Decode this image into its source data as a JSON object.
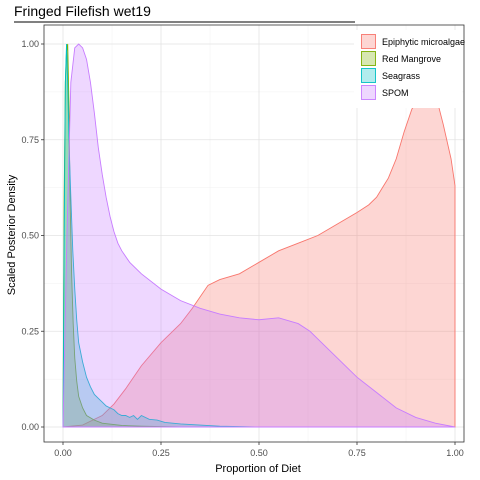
{
  "chart_data": {
    "type": "area",
    "title": "Fringed Filefish wet19",
    "xlabel": "Proportion of Diet",
    "ylabel": "Scaled Posterior Density",
    "xlim": [
      0,
      1
    ],
    "ylim": [
      0,
      1
    ],
    "x_ticks": [
      "0.00",
      "0.25",
      "0.50",
      "0.75",
      "1.00"
    ],
    "y_ticks": [
      "0.00",
      "0.25",
      "0.50",
      "0.75",
      "1.00"
    ],
    "grid": true,
    "legend_position": "top-right",
    "series": [
      {
        "name": "Epiphytic microalgae",
        "fill": "#F8766D",
        "points": [
          [
            0.0,
            0.0
          ],
          [
            0.05,
            0.005
          ],
          [
            0.1,
            0.03
          ],
          [
            0.13,
            0.06
          ],
          [
            0.16,
            0.1
          ],
          [
            0.2,
            0.16
          ],
          [
            0.25,
            0.22
          ],
          [
            0.3,
            0.27
          ],
          [
            0.33,
            0.31
          ],
          [
            0.35,
            0.34
          ],
          [
            0.37,
            0.37
          ],
          [
            0.4,
            0.385
          ],
          [
            0.45,
            0.4
          ],
          [
            0.5,
            0.43
          ],
          [
            0.55,
            0.46
          ],
          [
            0.6,
            0.48
          ],
          [
            0.65,
            0.5
          ],
          [
            0.7,
            0.53
          ],
          [
            0.75,
            0.56
          ],
          [
            0.78,
            0.58
          ],
          [
            0.8,
            0.6
          ],
          [
            0.83,
            0.65
          ],
          [
            0.85,
            0.7
          ],
          [
            0.87,
            0.77
          ],
          [
            0.89,
            0.83
          ],
          [
            0.91,
            0.86
          ],
          [
            0.93,
            0.88
          ],
          [
            0.95,
            0.87
          ],
          [
            0.97,
            0.79
          ],
          [
            0.99,
            0.7
          ],
          [
            1.0,
            0.63
          ]
        ]
      },
      {
        "name": "Red Mangrove",
        "fill": "#7CAE00",
        "points": [
          [
            0.0,
            0.0
          ],
          [
            0.003,
            0.6
          ],
          [
            0.006,
            0.9
          ],
          [
            0.009,
            0.98
          ],
          [
            0.012,
            1.0
          ],
          [
            0.015,
            0.85
          ],
          [
            0.018,
            0.6
          ],
          [
            0.022,
            0.4
          ],
          [
            0.026,
            0.27
          ],
          [
            0.03,
            0.18
          ],
          [
            0.035,
            0.12
          ],
          [
            0.04,
            0.08
          ],
          [
            0.05,
            0.05
          ],
          [
            0.06,
            0.03
          ],
          [
            0.08,
            0.018
          ],
          [
            0.1,
            0.01
          ],
          [
            0.15,
            0.004
          ],
          [
            0.2,
            0.002
          ],
          [
            0.3,
            0.0
          ],
          [
            0.5,
            0.0
          ],
          [
            1.0,
            0.0
          ]
        ]
      },
      {
        "name": "Seagrass",
        "fill": "#00BFC4",
        "points": [
          [
            0.0,
            0.0
          ],
          [
            0.003,
            0.5
          ],
          [
            0.006,
            0.9
          ],
          [
            0.009,
            1.0
          ],
          [
            0.012,
            0.9
          ],
          [
            0.016,
            0.72
          ],
          [
            0.02,
            0.6
          ],
          [
            0.025,
            0.46
          ],
          [
            0.03,
            0.36
          ],
          [
            0.035,
            0.28
          ],
          [
            0.04,
            0.22
          ],
          [
            0.05,
            0.17
          ],
          [
            0.06,
            0.13
          ],
          [
            0.07,
            0.105
          ],
          [
            0.08,
            0.085
          ],
          [
            0.09,
            0.075
          ],
          [
            0.1,
            0.065
          ],
          [
            0.11,
            0.055
          ],
          [
            0.12,
            0.05
          ],
          [
            0.13,
            0.045
          ],
          [
            0.14,
            0.035
          ],
          [
            0.15,
            0.03
          ],
          [
            0.16,
            0.03
          ],
          [
            0.17,
            0.025
          ],
          [
            0.18,
            0.03
          ],
          [
            0.19,
            0.02
          ],
          [
            0.2,
            0.03
          ],
          [
            0.22,
            0.02
          ],
          [
            0.24,
            0.018
          ],
          [
            0.26,
            0.012
          ],
          [
            0.28,
            0.01
          ],
          [
            0.3,
            0.008
          ],
          [
            0.35,
            0.005
          ],
          [
            0.4,
            0.002
          ],
          [
            0.45,
            0.001
          ],
          [
            0.5,
            0.0
          ],
          [
            1.0,
            0.0
          ]
        ]
      },
      {
        "name": "SPOM",
        "fill": "#C77CFF",
        "points": [
          [
            0.0,
            0.0
          ],
          [
            0.01,
            0.5
          ],
          [
            0.02,
            0.9
          ],
          [
            0.03,
            0.99
          ],
          [
            0.04,
            1.0
          ],
          [
            0.05,
            0.99
          ],
          [
            0.06,
            0.96
          ],
          [
            0.07,
            0.9
          ],
          [
            0.08,
            0.82
          ],
          [
            0.09,
            0.73
          ],
          [
            0.1,
            0.66
          ],
          [
            0.11,
            0.6
          ],
          [
            0.12,
            0.55
          ],
          [
            0.13,
            0.51
          ],
          [
            0.14,
            0.48
          ],
          [
            0.15,
            0.46
          ],
          [
            0.17,
            0.43
          ],
          [
            0.2,
            0.4
          ],
          [
            0.25,
            0.36
          ],
          [
            0.3,
            0.33
          ],
          [
            0.35,
            0.31
          ],
          [
            0.4,
            0.295
          ],
          [
            0.45,
            0.285
          ],
          [
            0.5,
            0.28
          ],
          [
            0.55,
            0.285
          ],
          [
            0.6,
            0.27
          ],
          [
            0.63,
            0.25
          ],
          [
            0.65,
            0.23
          ],
          [
            0.68,
            0.2
          ],
          [
            0.7,
            0.18
          ],
          [
            0.73,
            0.15
          ],
          [
            0.75,
            0.13
          ],
          [
            0.8,
            0.09
          ],
          [
            0.85,
            0.05
          ],
          [
            0.9,
            0.025
          ],
          [
            0.95,
            0.01
          ],
          [
            1.0,
            0.0
          ]
        ]
      }
    ]
  }
}
